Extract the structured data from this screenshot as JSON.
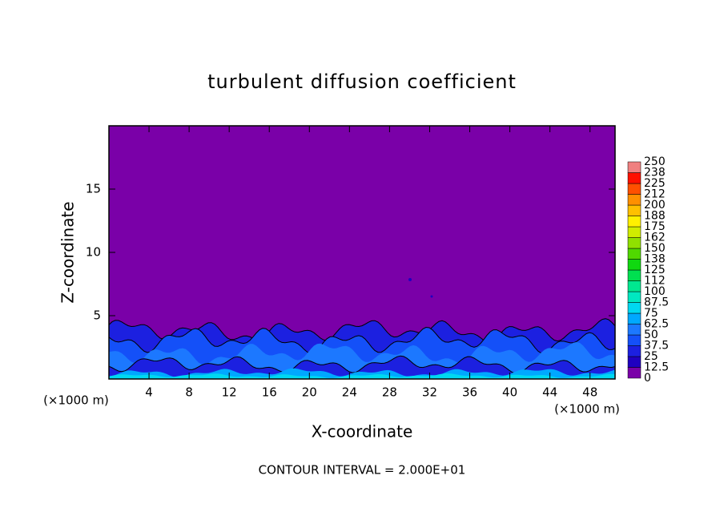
{
  "chart_data": {
    "type": "contour",
    "title": "turbulent diffusion coefficient",
    "x_label": "X-coordinate",
    "y_label": "Z-coordinate",
    "x_unit_label": "(×1000 m)",
    "note": "CONTOUR INTERVAL = 2.000E+01",
    "xlim": [
      0,
      50.5
    ],
    "xticks": [
      4,
      8,
      12,
      16,
      20,
      24,
      28,
      32,
      36,
      40,
      44,
      48
    ],
    "ylim": [
      0,
      20
    ],
    "yticks": [
      5,
      10,
      15
    ],
    "colorbar": {
      "levels": [
        0,
        12.5,
        25,
        37.5,
        50,
        62.5,
        75,
        87.5,
        100,
        112,
        125,
        138,
        150,
        162,
        175,
        188,
        200,
        212,
        225,
        238,
        250
      ],
      "colors": [
        "#7a00a8",
        "#2000c0",
        "#1c20e0",
        "#1450f8",
        "#1c78ff",
        "#00a8ff",
        "#00d8f0",
        "#00e8c0",
        "#00e890",
        "#00e050",
        "#10d810",
        "#50d800",
        "#90e000",
        "#d0ec00",
        "#fff000",
        "#ffc000",
        "#ff9000",
        "#ff5000",
        "#ff1000",
        "#f08080"
      ]
    }
  }
}
